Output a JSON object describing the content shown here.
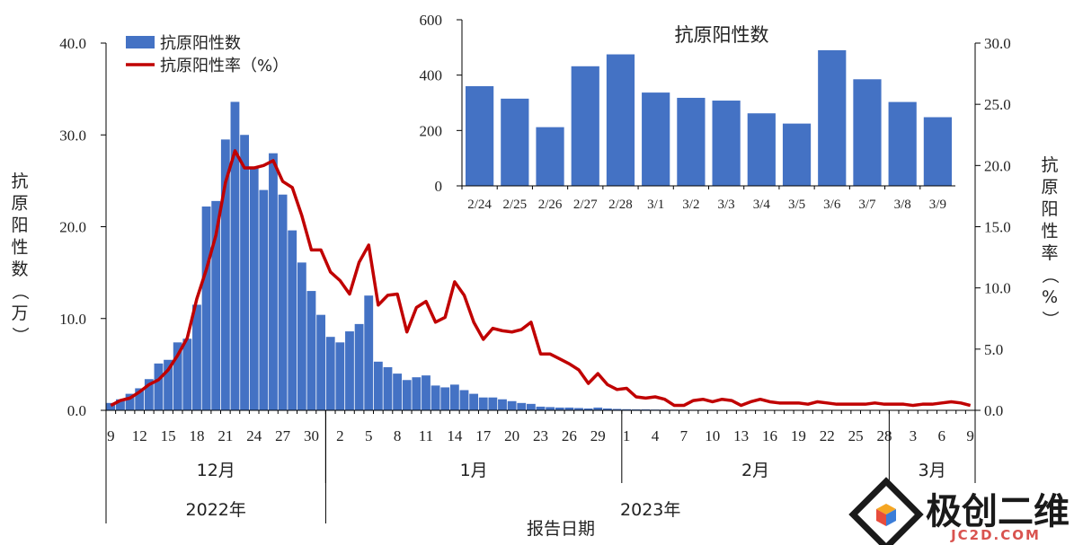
{
  "chart_data": [
    {
      "type": "bar+line",
      "legend": [
        "抗原阳性数",
        "抗原阳性率（%）"
      ],
      "legend_position": "top-left",
      "ylabel_left": "抗原阳性数（万）",
      "ylabel_right": "抗原阳性率（%）",
      "xlabel": "报告日期",
      "ylim_left": [
        0,
        40
      ],
      "yticks_left": [
        "0.0",
        "10.0",
        "20.0",
        "30.0",
        "40.0"
      ],
      "ylim_right": [
        0,
        30
      ],
      "yticks_right": [
        "0.0",
        "5.0",
        "10.0",
        "15.0",
        "20.0",
        "25.0",
        "30.0"
      ],
      "x_tick_labels": [
        "9",
        "12",
        "15",
        "18",
        "21",
        "24",
        "27",
        "30",
        "2",
        "5",
        "8",
        "11",
        "14",
        "17",
        "20",
        "23",
        "26",
        "29",
        "1",
        "4",
        "7",
        "10",
        "13",
        "16",
        "19",
        "22",
        "25",
        "28",
        "3",
        "6",
        "9"
      ],
      "x_tick_index": [
        0,
        3,
        6,
        9,
        12,
        15,
        18,
        21,
        24,
        27,
        30,
        33,
        36,
        39,
        42,
        45,
        48,
        51,
        54,
        57,
        60,
        63,
        66,
        69,
        72,
        75,
        78,
        81,
        84,
        87,
        90
      ],
      "months": [
        {
          "label": "12月",
          "start": 0,
          "end": 23
        },
        {
          "label": "1月",
          "start": 23,
          "end": 54
        },
        {
          "label": "2月",
          "start": 54,
          "end": 82
        },
        {
          "label": "3月",
          "start": 82,
          "end": 91
        }
      ],
      "years": [
        {
          "label": "2022年",
          "start": 0,
          "end": 23
        },
        {
          "label": "2023年",
          "start": 23,
          "end": 91
        }
      ],
      "bar_values": [
        0.8,
        1.2,
        1.8,
        2.4,
        3.4,
        5.1,
        5.5,
        7.4,
        7.8,
        11.5,
        22.2,
        22.8,
        29.5,
        33.6,
        30.0,
        26.4,
        24.0,
        28.0,
        23.5,
        19.6,
        16.1,
        13.0,
        10.4,
        8.0,
        7.4,
        8.6,
        9.4,
        12.5,
        5.3,
        4.7,
        4.0,
        3.3,
        3.6,
        3.8,
        2.7,
        2.5,
        2.8,
        2.2,
        1.8,
        1.4,
        1.4,
        1.2,
        1.0,
        0.8,
        0.7,
        0.4,
        0.35,
        0.3,
        0.3,
        0.25,
        0.2,
        0.3,
        0.2,
        0.15,
        0.12,
        0.1,
        0.1,
        0.08,
        0.08,
        0.07,
        0.07,
        0.06,
        0.06,
        0.06,
        0.05,
        0.05,
        0.05,
        0.05,
        0.05,
        0.05,
        0.05,
        0.05,
        0.05,
        0.05,
        0.05,
        0.05,
        0.05,
        0.05,
        0.05,
        0.05,
        0.05,
        0.05,
        0.05,
        0.05,
        0.05,
        0.05,
        0.05,
        0.05,
        0.05,
        0.05,
        0.05
      ],
      "line_values": [
        0.4,
        0.8,
        1.0,
        1.5,
        2.1,
        2.5,
        3.3,
        4.5,
        5.9,
        9.1,
        11.5,
        14.3,
        18.6,
        21.2,
        19.8,
        19.8,
        20.0,
        20.4,
        18.7,
        18.2,
        15.9,
        13.1,
        13.1,
        11.3,
        10.6,
        9.5,
        12.1,
        13.5,
        8.6,
        9.4,
        9.5,
        6.4,
        8.4,
        8.9,
        7.2,
        7.6,
        10.5,
        9.4,
        7.2,
        5.8,
        6.7,
        6.5,
        6.4,
        6.6,
        7.2,
        4.6,
        4.6,
        4.2,
        3.8,
        3.3,
        2.2,
        3.0,
        2.1,
        1.7,
        1.8,
        1.1,
        1.0,
        1.1,
        0.9,
        0.4,
        0.4,
        0.8,
        0.9,
        0.7,
        0.9,
        0.8,
        0.4,
        0.7,
        0.9,
        0.7,
        0.6,
        0.6,
        0.6,
        0.5,
        0.7,
        0.6,
        0.5,
        0.5,
        0.5,
        0.5,
        0.6,
        0.5,
        0.5,
        0.5,
        0.4,
        0.5,
        0.5,
        0.6,
        0.7,
        0.6,
        0.4
      ],
      "bar_color": "#4472C4",
      "line_color": "#C00000"
    },
    {
      "type": "bar",
      "title": "抗原阳性数",
      "categories": [
        "2/24",
        "2/25",
        "2/26",
        "2/27",
        "2/28",
        "3/1",
        "3/2",
        "3/3",
        "3/4",
        "3/5",
        "3/6",
        "3/7",
        "3/8",
        "3/9"
      ],
      "values": [
        360,
        315,
        212,
        432,
        475,
        337,
        318,
        308,
        262,
        225,
        490,
        385,
        303,
        248
      ],
      "ylim": [
        0,
        600
      ],
      "yticks": [
        "0",
        "200",
        "400",
        "600"
      ],
      "bar_color": "#4472C4"
    }
  ],
  "watermark": {
    "cn_text": "极创二维",
    "domain_text": "JC2D.COM"
  },
  "colors": {
    "bar": "#4472C4",
    "line": "#C00000",
    "axis": "#000000",
    "watermark_text": "#1a1a1a",
    "watermark_domain": "#d9534f"
  }
}
